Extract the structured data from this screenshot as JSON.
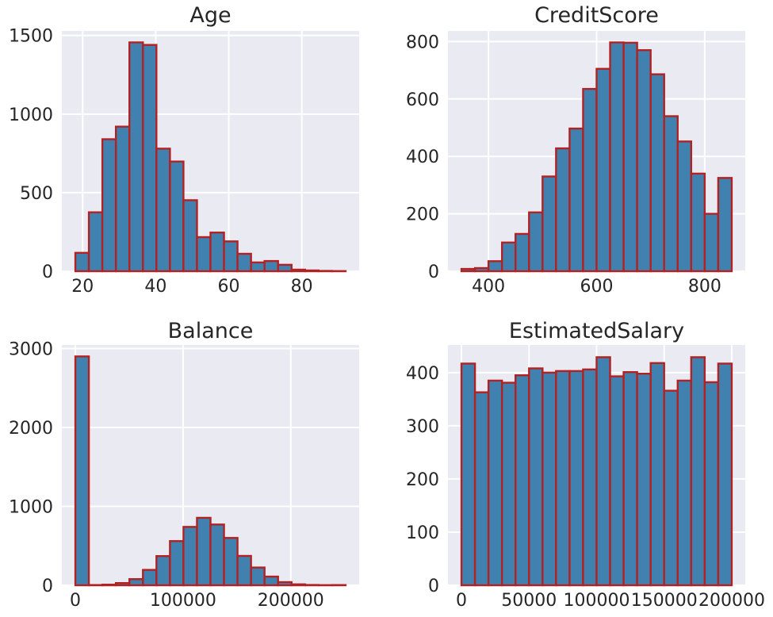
{
  "colors": {
    "figure_bg": "#ffffff",
    "axes_bg": "#eaeaf2",
    "grid": "#ffffff",
    "bar_fill": "#4181b0",
    "bar_edge": "#b22222",
    "text": "#262626"
  },
  "chart_data": [
    {
      "type": "bar",
      "title": "Age",
      "xlabel": "",
      "ylabel": "",
      "bin_start": 18,
      "bin_end": 92,
      "counts": [
        117,
        375,
        840,
        920,
        1456,
        1440,
        780,
        698,
        452,
        217,
        246,
        190,
        111,
        56,
        65,
        41,
        10,
        5,
        2,
        1
      ],
      "xlim": [
        14.3,
        95.7
      ],
      "ylim": [
        0,
        1529
      ],
      "grid": true,
      "yticks": [
        {
          "v": 0,
          "label": "0"
        },
        {
          "v": 500,
          "label": "500"
        },
        {
          "v": 1000,
          "label": "1000"
        },
        {
          "v": 1500,
          "label": "1500"
        }
      ],
      "xticks": [
        {
          "v": 20,
          "label": "20"
        },
        {
          "v": 40,
          "label": "40"
        },
        {
          "v": 60,
          "label": "60"
        },
        {
          "v": 80,
          "label": "80"
        }
      ]
    },
    {
      "type": "bar",
      "title": "CreditScore",
      "xlabel": "",
      "ylabel": "",
      "bin_start": 350,
      "bin_end": 850,
      "counts": [
        8,
        11,
        35,
        100,
        130,
        205,
        330,
        428,
        497,
        635,
        705,
        797,
        796,
        770,
        686,
        540,
        452,
        340,
        200,
        325
      ],
      "xlim": [
        325,
        875
      ],
      "ylim": [
        0,
        837
      ],
      "grid": true,
      "yticks": [
        {
          "v": 0,
          "label": "0"
        },
        {
          "v": 200,
          "label": "200"
        },
        {
          "v": 400,
          "label": "400"
        },
        {
          "v": 600,
          "label": "600"
        },
        {
          "v": 800,
          "label": "800"
        }
      ],
      "xticks": [
        {
          "v": 400,
          "label": "400"
        },
        {
          "v": 600,
          "label": "600"
        },
        {
          "v": 800,
          "label": "800"
        }
      ]
    },
    {
      "type": "bar",
      "title": "Balance",
      "xlabel": "",
      "ylabel": "",
      "bin_start": 0,
      "bin_end": 250898,
      "counts": [
        2900,
        3,
        8,
        28,
        78,
        195,
        370,
        560,
        740,
        855,
        770,
        600,
        372,
        225,
        110,
        40,
        12,
        4,
        1,
        3
      ],
      "xlim": [
        -12545,
        263443
      ],
      "ylim": [
        0,
        3045
      ],
      "grid": true,
      "yticks": [
        {
          "v": 0,
          "label": "0"
        },
        {
          "v": 1000,
          "label": "1000"
        },
        {
          "v": 2000,
          "label": "2000"
        },
        {
          "v": 3000,
          "label": "3000"
        }
      ],
      "xticks": [
        {
          "v": 0,
          "label": "0"
        },
        {
          "v": 100000,
          "label": "100000"
        },
        {
          "v": 200000,
          "label": "200000"
        }
      ]
    },
    {
      "type": "bar",
      "title": "EstimatedSalary",
      "xlabel": "",
      "ylabel": "",
      "bin_start": 0,
      "bin_end": 200000,
      "counts": [
        417,
        363,
        385,
        381,
        395,
        408,
        400,
        403,
        403,
        406,
        429,
        393,
        401,
        398,
        418,
        366,
        385,
        429,
        382,
        417
      ],
      "xlim": [
        -10000,
        210000
      ],
      "ylim": [
        0,
        452
      ],
      "grid": true,
      "yticks": [
        {
          "v": 0,
          "label": "0"
        },
        {
          "v": 100,
          "label": "100"
        },
        {
          "v": 200,
          "label": "200"
        },
        {
          "v": 300,
          "label": "300"
        },
        {
          "v": 400,
          "label": "400"
        }
      ],
      "xticks": [
        {
          "v": 0,
          "label": "0"
        },
        {
          "v": 50000,
          "label": "50000"
        },
        {
          "v": 100000,
          "label": "100000"
        },
        {
          "v": 150000,
          "label": "150000"
        },
        {
          "v": 200000,
          "label": "200000"
        }
      ]
    }
  ]
}
